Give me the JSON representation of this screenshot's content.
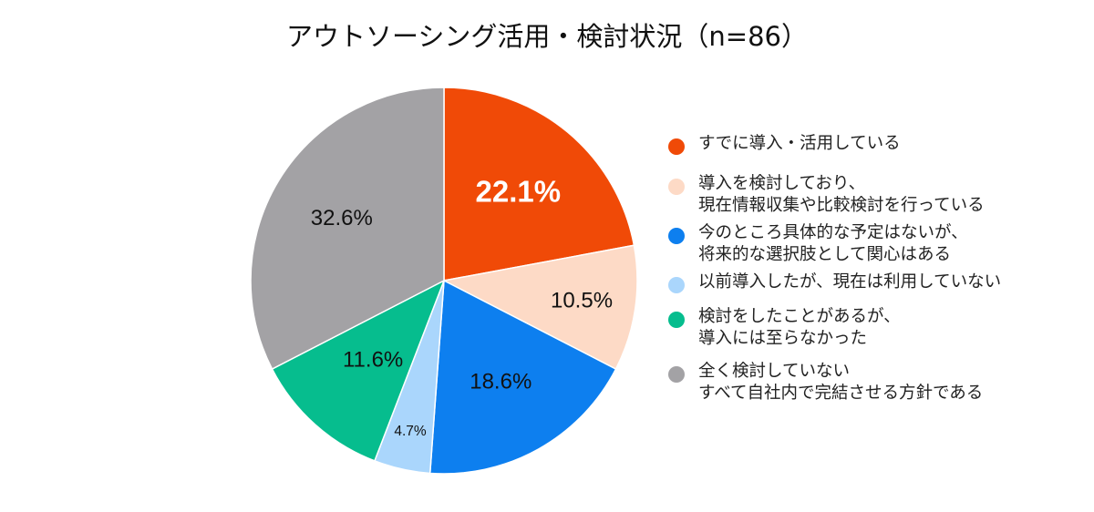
{
  "chart_data": {
    "type": "pie",
    "title": "アウトソーシング活用・検討状況（n=86）",
    "slices": [
      {
        "label_lines": [
          "すでに導入・活用している"
        ],
        "value": 22.1,
        "display": "22.1%",
        "color": "#f04a07",
        "label_color": "#ffffff",
        "label_weight": "bold",
        "label_size": "large"
      },
      {
        "label_lines": [
          "導入を検討しており、",
          "現在情報収集や比較検討を行っている"
        ],
        "value": 10.5,
        "display": "10.5%",
        "color": "#fddac6",
        "label_color": "#111111",
        "label_weight": "normal",
        "label_size": "medium"
      },
      {
        "label_lines": [
          "今のところ具体的な予定はないが、",
          "将来的な選択肢として関心はある"
        ],
        "value": 18.6,
        "display": "18.6%",
        "color": "#0d7fef",
        "label_color": "#111111",
        "label_weight": "normal",
        "label_size": "medium"
      },
      {
        "label_lines": [
          "以前導入したが、現在は利用していない"
        ],
        "value": 4.7,
        "display": "4.7%",
        "color": "#aad6fc",
        "label_color": "#111111",
        "label_weight": "normal",
        "label_size": "small"
      },
      {
        "label_lines": [
          "検討をしたことがあるが、",
          "導入には至らなかった"
        ],
        "value": 11.6,
        "display": "11.6%",
        "color": "#06bd8e",
        "label_color": "#111111",
        "label_weight": "normal",
        "label_size": "medium"
      },
      {
        "label_lines": [
          "全く検討していない",
          "すべて自社内で完結させる方針である"
        ],
        "value": 32.6,
        "display": "32.6%",
        "color": "#a3a2a5",
        "label_color": "#111111",
        "label_weight": "normal",
        "label_size": "medium"
      }
    ],
    "start_angle": "12 o'clock",
    "direction": "clockwise",
    "legend_position": "right",
    "stroke_color": "#ffffff"
  }
}
